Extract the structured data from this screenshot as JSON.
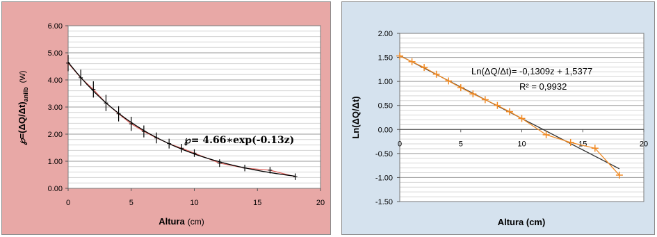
{
  "chart_data": [
    {
      "type": "line",
      "xlabel": "Altura",
      "xlabel_unit": "(cm)",
      "ylabel_parts": [
        "℘",
        "=(ΔQ/Δt)",
        "anilb",
        "(W)"
      ],
      "xlim": [
        0,
        20
      ],
      "ylim": [
        0,
        6
      ],
      "x_ticks": [
        "0",
        "5",
        "10",
        "15",
        "20"
      ],
      "y_ticks": [
        "0.00",
        "1.00",
        "2.00",
        "3.00",
        "4.00",
        "5.00",
        "6.00"
      ],
      "annotation": "℘= 4.66∗exp(-0.13z)",
      "grid": true,
      "series": [
        {
          "role": "measured",
          "color": "#e0605a",
          "x": [
            0,
            1,
            2,
            3,
            4,
            5,
            6,
            7,
            8,
            9,
            10,
            12,
            14,
            16,
            18
          ],
          "y": [
            4.62,
            4.08,
            3.65,
            3.15,
            2.75,
            2.38,
            2.1,
            1.86,
            1.65,
            1.48,
            1.3,
            0.93,
            0.75,
            0.67,
            0.43
          ],
          "error": [
            0.3,
            0.3,
            0.3,
            0.3,
            0.28,
            0.26,
            0.22,
            0.2,
            0.18,
            0.16,
            0.14,
            0.14,
            0.12,
            0.12,
            0.12
          ]
        },
        {
          "role": "fit",
          "color": "#000000",
          "function": "4.66*exp(-0.13*x)",
          "a": 4.66,
          "b": -0.13
        }
      ]
    },
    {
      "type": "line",
      "xlabel": "Altura (cm)",
      "ylabel": "Ln(ΔQ/Δt)",
      "xlim": [
        0,
        20
      ],
      "ylim": [
        -1.5,
        2.0
      ],
      "x_ticks": [
        "0",
        "5",
        "10",
        "15",
        "20"
      ],
      "y_ticks": [
        "2.00",
        "1.50",
        "1.00",
        "0.50",
        "0.00",
        "-0.50",
        "-1.00",
        "-1.50"
      ],
      "annotations": [
        "Ln(ΔQ/Δt)= -0,1309z + 1,5377",
        "R² = 0,9932"
      ],
      "grid": true,
      "series": [
        {
          "role": "measured",
          "color": "#f08a24",
          "x": [
            0,
            1,
            2,
            3,
            4,
            5,
            6,
            7,
            8,
            9,
            10,
            12,
            14,
            16,
            18
          ],
          "y": [
            1.53,
            1.41,
            1.29,
            1.15,
            1.01,
            0.87,
            0.74,
            0.62,
            0.5,
            0.37,
            0.23,
            -0.11,
            -0.27,
            -0.39,
            -0.95
          ]
        },
        {
          "role": "fit",
          "color": "#333333",
          "slope": -0.1309,
          "intercept": 1.5377
        }
      ]
    }
  ]
}
